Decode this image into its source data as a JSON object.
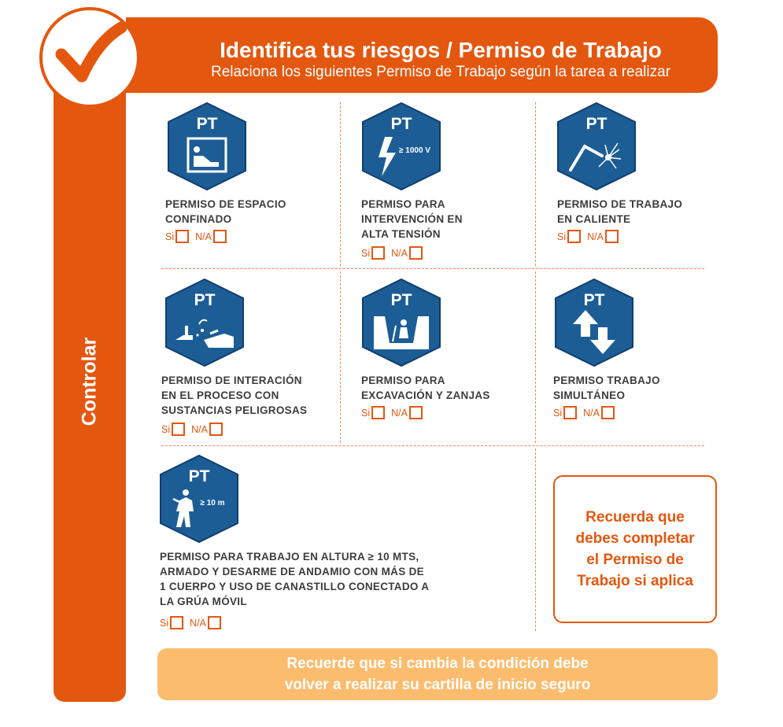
{
  "header": {
    "title": "Identifica tus riesgos / Permiso de Trabajo",
    "subtitle": "Relaciona los siguientes Permiso de Trabajo según la tarea a realizar"
  },
  "sidebar": {
    "label": "Controlar"
  },
  "icon_badge": "PT",
  "permits": [
    {
      "label_lines": [
        "PERMISO DE ESPACIO",
        "CONFINADO"
      ],
      "icon": "confined-space-icon",
      "yes_label": "Si",
      "na_label": "N/A"
    },
    {
      "label_lines": [
        "PERMISO PARA",
        "INTERVENCIÓN EN",
        "ALTA TENSIÓN"
      ],
      "icon": "high-voltage-icon",
      "icon_text": "≥ 1000 V",
      "yes_label": "Si",
      "na_label": "N/A"
    },
    {
      "label_lines": [
        "PERMISO DE TRABAJO",
        "EN CALIENTE"
      ],
      "icon": "hot-work-icon",
      "yes_label": "Si",
      "na_label": "N/A"
    },
    {
      "label_lines": [
        "PERMISO DE INTERACIÓN",
        "EN EL PROCESO CON",
        "SUSTANCIAS PELIGROSAS"
      ],
      "icon": "hazardous-substances-icon",
      "yes_label": "Si",
      "na_label": "N/A"
    },
    {
      "label_lines": [
        "PERMISO PARA",
        "EXCAVACIÓN Y ZANJAS"
      ],
      "icon": "excavation-icon",
      "yes_label": "Si",
      "na_label": "N/A"
    },
    {
      "label_lines": [
        "PERMISO TRABAJO",
        "SIMULTÁNEO"
      ],
      "icon": "simultaneous-work-icon",
      "yes_label": "Si",
      "na_label": "N/A"
    },
    {
      "label_lines": [
        "PERMISO PARA TRABAJO EN ALTURA ≥ 10 MTS,",
        "ARMADO Y DESARME DE ANDAMIO CON MÁS DE",
        "1 CUERPO Y USO DE CANASTILLO CONECTADO A",
        "LA GRÚA MÓVIL"
      ],
      "icon": "work-at-height-icon",
      "icon_text": "≥ 10 m",
      "yes_label": "Si",
      "na_label": "N/A"
    }
  ],
  "remember_box": {
    "lines": [
      "Recuerda que",
      "debes completar",
      "el Permiso de",
      "Trabajo si aplica"
    ]
  },
  "footer": {
    "lines": [
      "Recuerde que si cambia la condición debe",
      "volver a realizar su cartilla de inicio seguro"
    ]
  },
  "colors": {
    "orange": "#e4570f",
    "light_orange": "#fcbc6e",
    "icon_blue": "#1d5d96",
    "text_gray": "#3c3c3c"
  }
}
